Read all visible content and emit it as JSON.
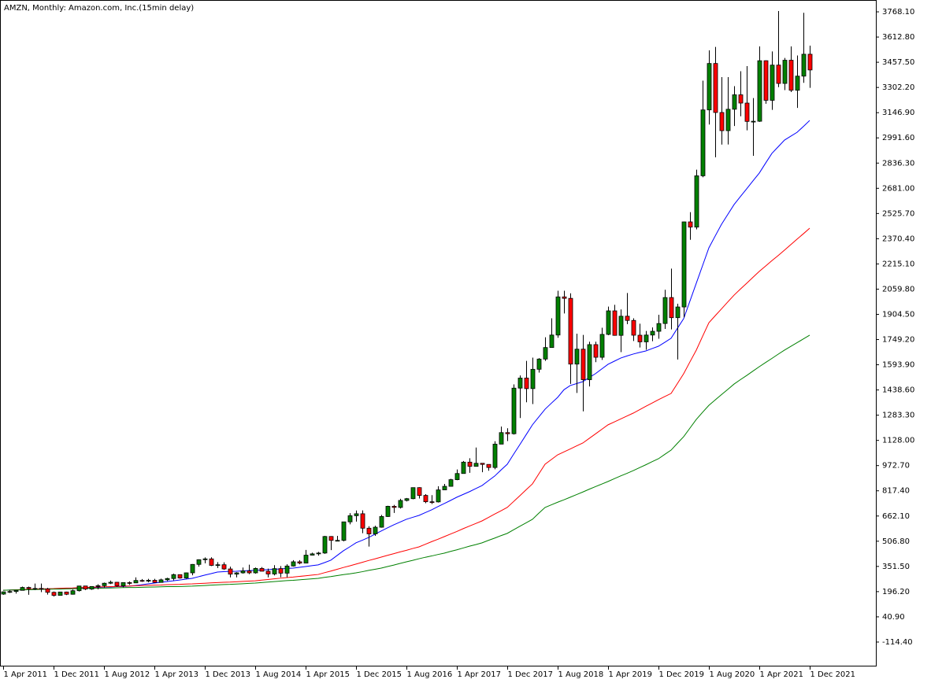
{
  "chart_data": {
    "type": "candlestick",
    "title": "AMZN, Monthly:  Amazon.com, Inc.(15min delay)",
    "categories": [
      "1 Apr 2011",
      null,
      null,
      null,
      null,
      null,
      null,
      null,
      "1 Dec 2011",
      null,
      null,
      null,
      null,
      null,
      null,
      null,
      "1 Aug 2012",
      null,
      null,
      null,
      null,
      null,
      null,
      null,
      "1 Apr 2013",
      null,
      null,
      null,
      null,
      null,
      null,
      null,
      "1 Dec 2013",
      null,
      null,
      null,
      null,
      null,
      null,
      null,
      "1 Aug 2014",
      null,
      null,
      null,
      null,
      null,
      null,
      null,
      "1 Apr 2015",
      null,
      null,
      null,
      null,
      null,
      null,
      null,
      "1 Dec 2015",
      null,
      null,
      null,
      null,
      null,
      null,
      null,
      "1 Aug 2016",
      null,
      null,
      null,
      null,
      null,
      null,
      null,
      "1 Apr 2017",
      null,
      null,
      null,
      null,
      null,
      null,
      null,
      "1 Dec 2017",
      null,
      null,
      null,
      null,
      null,
      null,
      null,
      "1 Aug 2018",
      null,
      null,
      null,
      null,
      null,
      null,
      null,
      "1 Apr 2019",
      null,
      null,
      null,
      null,
      null,
      null,
      null,
      "1 Dec 2019",
      null,
      null,
      null,
      null,
      null,
      null,
      null,
      "1 Aug 2020",
      null,
      null,
      null,
      null,
      null,
      null,
      null,
      "1 Apr 2021",
      null,
      null,
      null,
      null,
      null,
      null,
      null,
      "1 Dec 2021"
    ],
    "open": [
      181,
      195,
      197,
      204,
      222,
      215,
      216,
      213,
      192,
      173,
      194,
      180,
      202,
      231,
      212,
      228,
      233,
      248,
      254,
      232,
      252,
      250,
      265,
      264,
      266,
      253,
      269,
      277,
      301,
      280,
      312,
      364,
      393,
      398,
      358,
      362,
      336,
      304,
      312,
      324,
      312,
      339,
      322,
      305,
      338,
      310,
      354,
      380,
      372,
      421,
      429,
      434,
      536,
      512,
      512,
      626,
      664,
      676,
      587,
      552,
      593,
      659,
      722,
      715,
      758,
      769,
      837,
      789,
      750,
      749,
      823,
      845,
      886,
      924,
      994,
      968,
      987,
      980,
      961,
      1105,
      1176,
      1169,
      1450,
      1512,
      1447,
      1566,
      1629,
      1700,
      1777,
      2012,
      2003,
      1598,
      1690,
      1502,
      1718,
      1640,
      1781,
      1926,
      1775,
      1893,
      1867,
      1776,
      1735,
      1777,
      1800,
      1848,
      2008,
      1884,
      1950,
      2474,
      2442,
      2758,
      3164,
      3450,
      3148,
      3036,
      3168,
      3257,
      3206,
      3093,
      3094,
      3467,
      3223,
      3440,
      3327,
      3470,
      3285,
      3372,
      3507
    ],
    "high": [
      197,
      206,
      206,
      227,
      227,
      246,
      246,
      219,
      197,
      195,
      196,
      209,
      232,
      232,
      228,
      242,
      252,
      264,
      256,
      252,
      259,
      284,
      274,
      275,
      275,
      276,
      282,
      307,
      301,
      314,
      366,
      395,
      407,
      408,
      378,
      377,
      350,
      316,
      345,
      362,
      345,
      348,
      338,
      359,
      354,
      365,
      390,
      390,
      453,
      436,
      441,
      540,
      538,
      540,
      627,
      680,
      696,
      697,
      599,
      602,
      669,
      725,
      731,
      768,
      773,
      838,
      839,
      797,
      791,
      845,
      860,
      891,
      949,
      1001,
      1018,
      1084,
      983,
      975,
      1123,
      1213,
      1203,
      1473,
      1528,
      1618,
      1638,
      1635,
      1763,
      1880,
      2050,
      2050,
      2034,
      1785,
      1778,
      1736,
      1736,
      1822,
      1952,
      1963,
      1935,
      2036,
      1880,
      1847,
      1802,
      1824,
      1902,
      2056,
      2186,
      1970,
      2476,
      2534,
      2796,
      3344,
      3531,
      3552,
      3366,
      3366,
      3310,
      3402,
      3434,
      3237,
      3555,
      3469,
      3524,
      3773,
      3484,
      3555,
      3499,
      3762,
      3560
    ],
    "low": [
      177,
      188,
      184,
      203,
      177,
      206,
      193,
      178,
      166,
      172,
      175,
      178,
      197,
      206,
      207,
      210,
      221,
      243,
      226,
      223,
      238,
      249,
      256,
      254,
      250,
      256,
      262,
      266,
      276,
      276,
      297,
      350,
      371,
      354,
      342,
      330,
      284,
      284,
      307,
      304,
      307,
      322,
      284,
      296,
      285,
      285,
      351,
      365,
      370,
      419,
      418,
      429,
      452,
      508,
      506,
      611,
      628,
      556,
      474,
      540,
      590,
      656,
      681,
      708,
      752,
      765,
      770,
      741,
      736,
      745,
      823,
      843,
      883,
      924,
      928,
      985,
      932,
      941,
      950,
      1105,
      1124,
      1164,
      1266,
      1363,
      1352,
      1546,
      1618,
      1699,
      1760,
      1910,
      1476,
      1420,
      1307,
      1460,
      1610,
      1624,
      1776,
      1773,
      1672,
      1844,
      1740,
      1700,
      1686,
      1739,
      1754,
      1815,
      1812,
      1626,
      1886,
      2364,
      2428,
      2749,
      3074,
      2872,
      2950,
      2951,
      3065,
      3125,
      3038,
      2881,
      3090,
      3202,
      3164,
      3304,
      3286,
      3274,
      3176,
      3331,
      3300
    ],
    "close": [
      195,
      197,
      204,
      222,
      215,
      216,
      213,
      192,
      173,
      194,
      180,
      202,
      231,
      212,
      228,
      233,
      248,
      254,
      232,
      252,
      250,
      265,
      264,
      266,
      253,
      269,
      277,
      301,
      280,
      312,
      364,
      393,
      398,
      358,
      362,
      336,
      304,
      312,
      324,
      312,
      339,
      322,
      305,
      338,
      310,
      354,
      380,
      372,
      421,
      429,
      434,
      536,
      512,
      512,
      626,
      664,
      676,
      587,
      552,
      593,
      659,
      722,
      715,
      758,
      769,
      837,
      789,
      750,
      749,
      823,
      845,
      886,
      924,
      994,
      968,
      987,
      980,
      961,
      1105,
      1176,
      1169,
      1450,
      1512,
      1447,
      1566,
      1629,
      1700,
      1777,
      2012,
      2003,
      1598,
      1690,
      1502,
      1718,
      1640,
      1781,
      1926,
      1775,
      1893,
      1867,
      1776,
      1735,
      1777,
      1800,
      1848,
      2008,
      1884,
      1950,
      2474,
      2442,
      2758,
      3164,
      3450,
      3148,
      3036,
      3168,
      3257,
      3206,
      3093,
      3094,
      3467,
      3223,
      3440,
      3327,
      3470,
      3285,
      3372,
      3507,
      3410
    ],
    "up_color": "#008000",
    "down_color": "#ff0000",
    "lines": [
      {
        "color": "#0000ff",
        "values": [
          205,
          206,
          207,
          208,
          209,
          210,
          211,
          212,
          213,
          214,
          215,
          216,
          218,
          219,
          221,
          222,
          224,
          225,
          227,
          228,
          230,
          234,
          239,
          244,
          249,
          254,
          258,
          263,
          268,
          273,
          278,
          288,
          298,
          307,
          317,
          319,
          321,
          322,
          324,
          326,
          327,
          329,
          332,
          334,
          336,
          339,
          341,
          346,
          351,
          356,
          361,
          375,
          390,
          419,
          448,
          472,
          497,
          513,
          530,
          550,
          570,
          589,
          608,
          625,
          642,
          654,
          666,
          683,
          700,
          720,
          739,
          758,
          778,
          795,
          812,
          831,
          850,
          879,
          908,
          945,
          981,
          1042,
          1102,
          1163,
          1224,
          1272,
          1320,
          1357,
          1393,
          1440,
          1466,
          1478,
          1490,
          1515,
          1539,
          1568,
          1597,
          1616,
          1635,
          1648,
          1660,
          1670,
          1679,
          1694,
          1708,
          1732,
          1757,
          1818,
          1878,
          1987,
          2096,
          2205,
          2314,
          2387,
          2459,
          2520,
          2581,
          2630,
          2678,
          2727,
          2775,
          2836,
          2896,
          2937,
          2978,
          3002,
          3026,
          3062,
          3099
        ]
      },
      {
        "color": "#ff0000",
        "values": [
          205,
          206,
          208,
          209,
          210,
          212,
          213,
          214,
          215,
          217,
          218,
          219,
          221,
          222,
          223,
          225,
          226,
          227,
          228,
          230,
          231,
          232,
          234,
          235,
          236,
          237,
          239,
          240,
          241,
          243,
          244,
          246,
          248,
          250,
          252,
          254,
          255,
          257,
          259,
          261,
          263,
          267,
          271,
          275,
          279,
          283,
          286,
          290,
          294,
          298,
          302,
          313,
          323,
          334,
          345,
          355,
          366,
          377,
          388,
          398,
          409,
          420,
          430,
          441,
          451,
          462,
          472,
          488,
          504,
          519,
          535,
          551,
          567,
          584,
          600,
          616,
          632,
          653,
          674,
          694,
          715,
          751,
          787,
          824,
          860,
          921,
          981,
          1010,
          1039,
          1057,
          1075,
          1094,
          1112,
          1140,
          1168,
          1196,
          1224,
          1242,
          1260,
          1278,
          1296,
          1317,
          1338,
          1358,
          1379,
          1398,
          1417,
          1478,
          1539,
          1612,
          1684,
          1769,
          1853,
          1896,
          1938,
          1981,
          2023,
          2060,
          2096,
          2133,
          2169,
          2202,
          2235,
          2267,
          2300,
          2334,
          2368,
          2401,
          2435
        ]
      },
      {
        "color": "#008000",
        "values": [
          205,
          206,
          207,
          207,
          208,
          209,
          210,
          211,
          212,
          212,
          213,
          214,
          215,
          216,
          217,
          217,
          218,
          219,
          220,
          221,
          222,
          222,
          223,
          224,
          225,
          226,
          227,
          227,
          228,
          229,
          230,
          232,
          234,
          236,
          238,
          240,
          241,
          243,
          245,
          247,
          249,
          252,
          255,
          258,
          261,
          264,
          266,
          269,
          272,
          275,
          278,
          284,
          289,
          295,
          301,
          306,
          312,
          319,
          327,
          334,
          341,
          351,
          360,
          370,
          380,
          389,
          399,
          408,
          416,
          425,
          433,
          444,
          454,
          465,
          476,
          486,
          497,
          512,
          526,
          541,
          555,
          577,
          599,
          620,
          642,
          679,
          715,
          731,
          747,
          762,
          778,
          794,
          810,
          827,
          843,
          859,
          875,
          892,
          909,
          925,
          942,
          960,
          978,
          997,
          1015,
          1042,
          1068,
          1110,
          1151,
          1204,
          1257,
          1301,
          1344,
          1377,
          1410,
          1442,
          1475,
          1502,
          1528,
          1555,
          1582,
          1608,
          1633,
          1659,
          1684,
          1707,
          1730,
          1753,
          1776
        ]
      }
    ],
    "ylim": [
      -260,
      3841
    ],
    "yticks": [
      {
        "value": -114.4,
        "label": "-114.40"
      },
      {
        "value": 40.9,
        "label": "40.90"
      },
      {
        "value": 196.2,
        "label": "196.20"
      },
      {
        "value": 351.5,
        "label": "351.50"
      },
      {
        "value": 506.8,
        "label": "506.80"
      },
      {
        "value": 662.1,
        "label": "662.10"
      },
      {
        "value": 817.4,
        "label": "817.40"
      },
      {
        "value": 972.7,
        "label": "972.70"
      },
      {
        "value": 1128,
        "label": "1128.00"
      },
      {
        "value": 1283.3,
        "label": "1283.30"
      },
      {
        "value": 1438.6,
        "label": "1438.60"
      },
      {
        "value": 1593.9,
        "label": "1593.90"
      },
      {
        "value": 1749.2,
        "label": "1749.20"
      },
      {
        "value": 1904.5,
        "label": "1904.50"
      },
      {
        "value": 2059.8,
        "label": "2059.80"
      },
      {
        "value": 2215.1,
        "label": "2215.10"
      },
      {
        "value": 2370.4,
        "label": "2370.40"
      },
      {
        "value": 2525.7,
        "label": "2525.70"
      },
      {
        "value": 2681,
        "label": "2681.00"
      },
      {
        "value": 2836.3,
        "label": "2836.30"
      },
      {
        "value": 2991.6,
        "label": "2991.60"
      },
      {
        "value": 3146.9,
        "label": "3146.90"
      },
      {
        "value": 3302.2,
        "label": "3302.20"
      },
      {
        "value": 3457.5,
        "label": "3457.50"
      },
      {
        "value": 3612.8,
        "label": "3612.80"
      },
      {
        "value": 3768.1,
        "label": "3768.10"
      }
    ]
  }
}
